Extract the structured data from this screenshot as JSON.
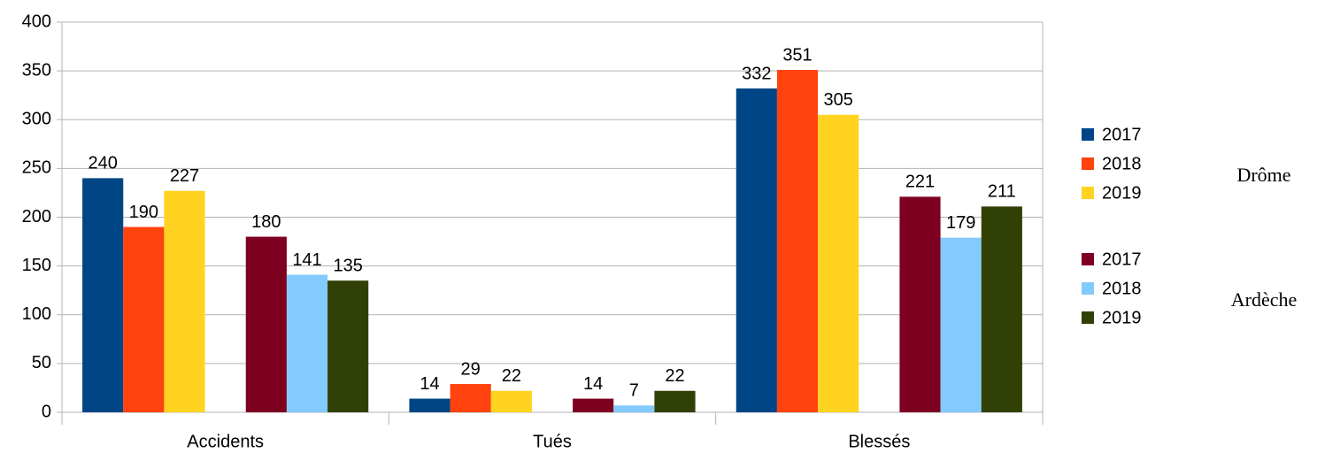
{
  "chart_data": {
    "type": "bar",
    "categories": [
      "Accidents",
      "Tués",
      "Blessés"
    ],
    "groups": [
      {
        "name": "Drôme",
        "series": [
          {
            "name": "2017",
            "color": "#004586",
            "values": [
              240,
              14,
              332
            ]
          },
          {
            "name": "2018",
            "color": "#ff420e",
            "values": [
              190,
              29,
              351
            ]
          },
          {
            "name": "2019",
            "color": "#ffd320",
            "values": [
              227,
              22,
              305
            ]
          }
        ]
      },
      {
        "name": "Ardèche",
        "series": [
          {
            "name": "2017",
            "color": "#7e0021",
            "values": [
              180,
              14,
              221
            ]
          },
          {
            "name": "2018",
            "color": "#83caff",
            "values": [
              141,
              7,
              179
            ]
          },
          {
            "name": "2019",
            "color": "#314004",
            "values": [
              135,
              22,
              211
            ]
          }
        ]
      }
    ],
    "ylim": [
      0,
      400
    ],
    "yticks": [
      0,
      50,
      100,
      150,
      200,
      250,
      300,
      350,
      400
    ],
    "grid": true
  }
}
